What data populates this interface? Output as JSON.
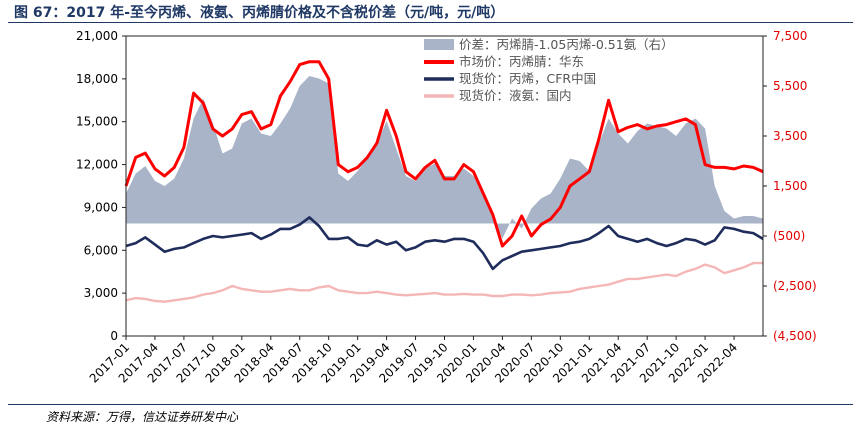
{
  "title": "图 67：2017 年-至今丙烯、液氨、丙烯腈价格及不含税价差（元/吨，元/吨）",
  "source": "资料来源：万得，信达证券研发中心",
  "chart_data": {
    "type": "line",
    "yticks_left": [
      "21,000",
      "18,000",
      "15,000",
      "12,000",
      "9,000",
      "6,000",
      "3,000",
      "0"
    ],
    "yticks_right": [
      "7,500",
      "5,500",
      "3,500",
      "1,500",
      "(500)",
      "(2,500)",
      "(4,500)"
    ],
    "ylim_left": [
      0,
      21000
    ],
    "ylim_right": [
      -4500,
      7500
    ],
    "x_ticks": [
      "2017-01",
      "2017-04",
      "2017-07",
      "2017-10",
      "2018-01",
      "2018-04",
      "2018-07",
      "2018-10",
      "2019-01",
      "2019-04",
      "2019-07",
      "2019-10",
      "2020-01",
      "2020-04",
      "2020-07",
      "2020-10",
      "2021-01",
      "2021-04",
      "2021-07",
      "2021-10",
      "2022-01",
      "2022-04"
    ],
    "x_months": 67,
    "series": [
      {
        "name": "价差：丙烯腈-1.05丙烯-0.51氨（右）",
        "type": "area",
        "axis": "right",
        "color": "#a9b4c8",
        "points": [
          [
            0,
            1200
          ],
          [
            1,
            2000
          ],
          [
            2,
            2300
          ],
          [
            3,
            1700
          ],
          [
            4,
            1500
          ],
          [
            5,
            1800
          ],
          [
            6,
            2600
          ],
          [
            7,
            4200
          ],
          [
            8,
            5000
          ],
          [
            9,
            4000
          ],
          [
            10,
            2800
          ],
          [
            11,
            3000
          ],
          [
            12,
            4000
          ],
          [
            13,
            4200
          ],
          [
            14,
            3600
          ],
          [
            15,
            3500
          ],
          [
            16,
            4000
          ],
          [
            17,
            4600
          ],
          [
            18,
            5500
          ],
          [
            19,
            5900
          ],
          [
            20,
            5800
          ],
          [
            21,
            5600
          ],
          [
            22,
            2000
          ],
          [
            23,
            1700
          ],
          [
            24,
            2100
          ],
          [
            25,
            2600
          ],
          [
            26,
            3200
          ],
          [
            27,
            4100
          ],
          [
            28,
            3000
          ],
          [
            29,
            1900
          ],
          [
            30,
            1700
          ],
          [
            31,
            2200
          ],
          [
            32,
            2400
          ],
          [
            33,
            1900
          ],
          [
            34,
            1900
          ],
          [
            35,
            2200
          ],
          [
            36,
            1900
          ],
          [
            37,
            1300
          ],
          [
            38,
            300
          ],
          [
            39,
            -600
          ],
          [
            40,
            200
          ],
          [
            41,
            -200
          ],
          [
            42,
            600
          ],
          [
            43,
            1000
          ],
          [
            44,
            1200
          ],
          [
            45,
            1800
          ],
          [
            46,
            2600
          ],
          [
            47,
            2500
          ],
          [
            48,
            2100
          ],
          [
            49,
            3200
          ],
          [
            50,
            4200
          ],
          [
            51,
            3600
          ],
          [
            52,
            3200
          ],
          [
            53,
            3700
          ],
          [
            54,
            4000
          ],
          [
            55,
            3900
          ],
          [
            56,
            3800
          ],
          [
            57,
            3500
          ],
          [
            58,
            4000
          ],
          [
            59,
            4200
          ],
          [
            60,
            3800
          ],
          [
            61,
            1500
          ],
          [
            62,
            500
          ],
          [
            63,
            200
          ],
          [
            64,
            300
          ],
          [
            65,
            300
          ],
          [
            66,
            200
          ]
        ]
      },
      {
        "name": "市场价：丙烯腈：华东",
        "type": "line",
        "axis": "left",
        "color": "#ff0000",
        "points": [
          [
            0,
            10500
          ],
          [
            1,
            12500
          ],
          [
            2,
            12800
          ],
          [
            3,
            11700
          ],
          [
            4,
            11200
          ],
          [
            5,
            11800
          ],
          [
            6,
            13200
          ],
          [
            7,
            17000
          ],
          [
            8,
            16300
          ],
          [
            9,
            14500
          ],
          [
            10,
            14000
          ],
          [
            11,
            14500
          ],
          [
            12,
            15500
          ],
          [
            13,
            15700
          ],
          [
            14,
            14500
          ],
          [
            15,
            14800
          ],
          [
            16,
            16800
          ],
          [
            17,
            17800
          ],
          [
            18,
            19000
          ],
          [
            19,
            19200
          ],
          [
            20,
            19200
          ],
          [
            21,
            18000
          ],
          [
            22,
            12000
          ],
          [
            23,
            11500
          ],
          [
            24,
            11800
          ],
          [
            25,
            12500
          ],
          [
            26,
            13500
          ],
          [
            27,
            15800
          ],
          [
            28,
            14000
          ],
          [
            29,
            11500
          ],
          [
            30,
            11000
          ],
          [
            31,
            11800
          ],
          [
            32,
            12300
          ],
          [
            33,
            11000
          ],
          [
            34,
            11000
          ],
          [
            35,
            12000
          ],
          [
            36,
            11500
          ],
          [
            37,
            10000
          ],
          [
            38,
            8500
          ],
          [
            39,
            6300
          ],
          [
            40,
            7000
          ],
          [
            41,
            8400
          ],
          [
            42,
            7000
          ],
          [
            43,
            7800
          ],
          [
            44,
            8200
          ],
          [
            45,
            9000
          ],
          [
            46,
            10500
          ],
          [
            47,
            11000
          ],
          [
            48,
            11500
          ],
          [
            49,
            13800
          ],
          [
            50,
            16500
          ],
          [
            51,
            14300
          ],
          [
            52,
            14600
          ],
          [
            53,
            14800
          ],
          [
            54,
            14500
          ],
          [
            55,
            14700
          ],
          [
            56,
            14800
          ],
          [
            57,
            15000
          ],
          [
            58,
            15200
          ],
          [
            59,
            14800
          ],
          [
            60,
            12000
          ],
          [
            61,
            11800
          ],
          [
            62,
            11800
          ],
          [
            63,
            11700
          ],
          [
            64,
            11900
          ],
          [
            65,
            11800
          ],
          [
            66,
            11500
          ]
        ]
      },
      {
        "name": "现货价：丙烯，CFR中国",
        "type": "line",
        "axis": "left",
        "color": "#1f2d5c",
        "points": [
          [
            0,
            6300
          ],
          [
            1,
            6500
          ],
          [
            2,
            6900
          ],
          [
            3,
            6400
          ],
          [
            4,
            5900
          ],
          [
            5,
            6100
          ],
          [
            6,
            6200
          ],
          [
            7,
            6500
          ],
          [
            8,
            6800
          ],
          [
            9,
            7000
          ],
          [
            10,
            6900
          ],
          [
            11,
            7000
          ],
          [
            12,
            7100
          ],
          [
            13,
            7200
          ],
          [
            14,
            6800
          ],
          [
            15,
            7100
          ],
          [
            16,
            7500
          ],
          [
            17,
            7500
          ],
          [
            18,
            7800
          ],
          [
            19,
            8300
          ],
          [
            20,
            7700
          ],
          [
            21,
            6800
          ],
          [
            22,
            6800
          ],
          [
            23,
            6900
          ],
          [
            24,
            6400
          ],
          [
            25,
            6300
          ],
          [
            26,
            6700
          ],
          [
            27,
            6400
          ],
          [
            28,
            6600
          ],
          [
            29,
            6000
          ],
          [
            30,
            6200
          ],
          [
            31,
            6600
          ],
          [
            32,
            6700
          ],
          [
            33,
            6600
          ],
          [
            34,
            6800
          ],
          [
            35,
            6800
          ],
          [
            36,
            6600
          ],
          [
            37,
            5800
          ],
          [
            38,
            4700
          ],
          [
            39,
            5300
          ],
          [
            40,
            5600
          ],
          [
            41,
            5900
          ],
          [
            42,
            6000
          ],
          [
            43,
            6100
          ],
          [
            44,
            6200
          ],
          [
            45,
            6300
          ],
          [
            46,
            6500
          ],
          [
            47,
            6600
          ],
          [
            48,
            6800
          ],
          [
            49,
            7200
          ],
          [
            50,
            7700
          ],
          [
            51,
            7000
          ],
          [
            52,
            6800
          ],
          [
            53,
            6600
          ],
          [
            54,
            6800
          ],
          [
            55,
            6500
          ],
          [
            56,
            6300
          ],
          [
            57,
            6500
          ],
          [
            58,
            6800
          ],
          [
            59,
            6700
          ],
          [
            60,
            6400
          ],
          [
            61,
            6700
          ],
          [
            62,
            7600
          ],
          [
            63,
            7500
          ],
          [
            64,
            7300
          ],
          [
            65,
            7200
          ],
          [
            66,
            6800
          ]
        ]
      },
      {
        "name": "现货价：液氨：国内",
        "type": "line",
        "axis": "left",
        "color": "#f4b6b6",
        "points": [
          [
            0,
            2500
          ],
          [
            1,
            2650
          ],
          [
            2,
            2600
          ],
          [
            3,
            2450
          ],
          [
            4,
            2400
          ],
          [
            5,
            2500
          ],
          [
            6,
            2600
          ],
          [
            7,
            2700
          ],
          [
            8,
            2900
          ],
          [
            9,
            3000
          ],
          [
            10,
            3200
          ],
          [
            11,
            3500
          ],
          [
            12,
            3300
          ],
          [
            13,
            3200
          ],
          [
            14,
            3100
          ],
          [
            15,
            3100
          ],
          [
            16,
            3200
          ],
          [
            17,
            3300
          ],
          [
            18,
            3200
          ],
          [
            19,
            3200
          ],
          [
            20,
            3400
          ],
          [
            21,
            3500
          ],
          [
            22,
            3200
          ],
          [
            23,
            3100
          ],
          [
            24,
            3000
          ],
          [
            25,
            3000
          ],
          [
            26,
            3100
          ],
          [
            27,
            3000
          ],
          [
            28,
            2900
          ],
          [
            29,
            2850
          ],
          [
            30,
            2900
          ],
          [
            31,
            2950
          ],
          [
            32,
            3000
          ],
          [
            33,
            2900
          ],
          [
            34,
            2900
          ],
          [
            35,
            2950
          ],
          [
            36,
            2900
          ],
          [
            37,
            2900
          ],
          [
            38,
            2800
          ],
          [
            39,
            2800
          ],
          [
            40,
            2900
          ],
          [
            41,
            2900
          ],
          [
            42,
            2850
          ],
          [
            43,
            2900
          ],
          [
            44,
            3000
          ],
          [
            45,
            3050
          ],
          [
            46,
            3100
          ],
          [
            47,
            3300
          ],
          [
            48,
            3400
          ],
          [
            49,
            3500
          ],
          [
            50,
            3600
          ],
          [
            51,
            3800
          ],
          [
            52,
            4000
          ],
          [
            53,
            4000
          ],
          [
            54,
            4100
          ],
          [
            55,
            4200
          ],
          [
            56,
            4300
          ],
          [
            57,
            4200
          ],
          [
            58,
            4500
          ],
          [
            59,
            4700
          ],
          [
            60,
            5000
          ],
          [
            61,
            4800
          ],
          [
            62,
            4400
          ],
          [
            63,
            4600
          ],
          [
            64,
            4800
          ],
          [
            65,
            5100
          ],
          [
            66,
            5100
          ]
        ]
      }
    ]
  }
}
